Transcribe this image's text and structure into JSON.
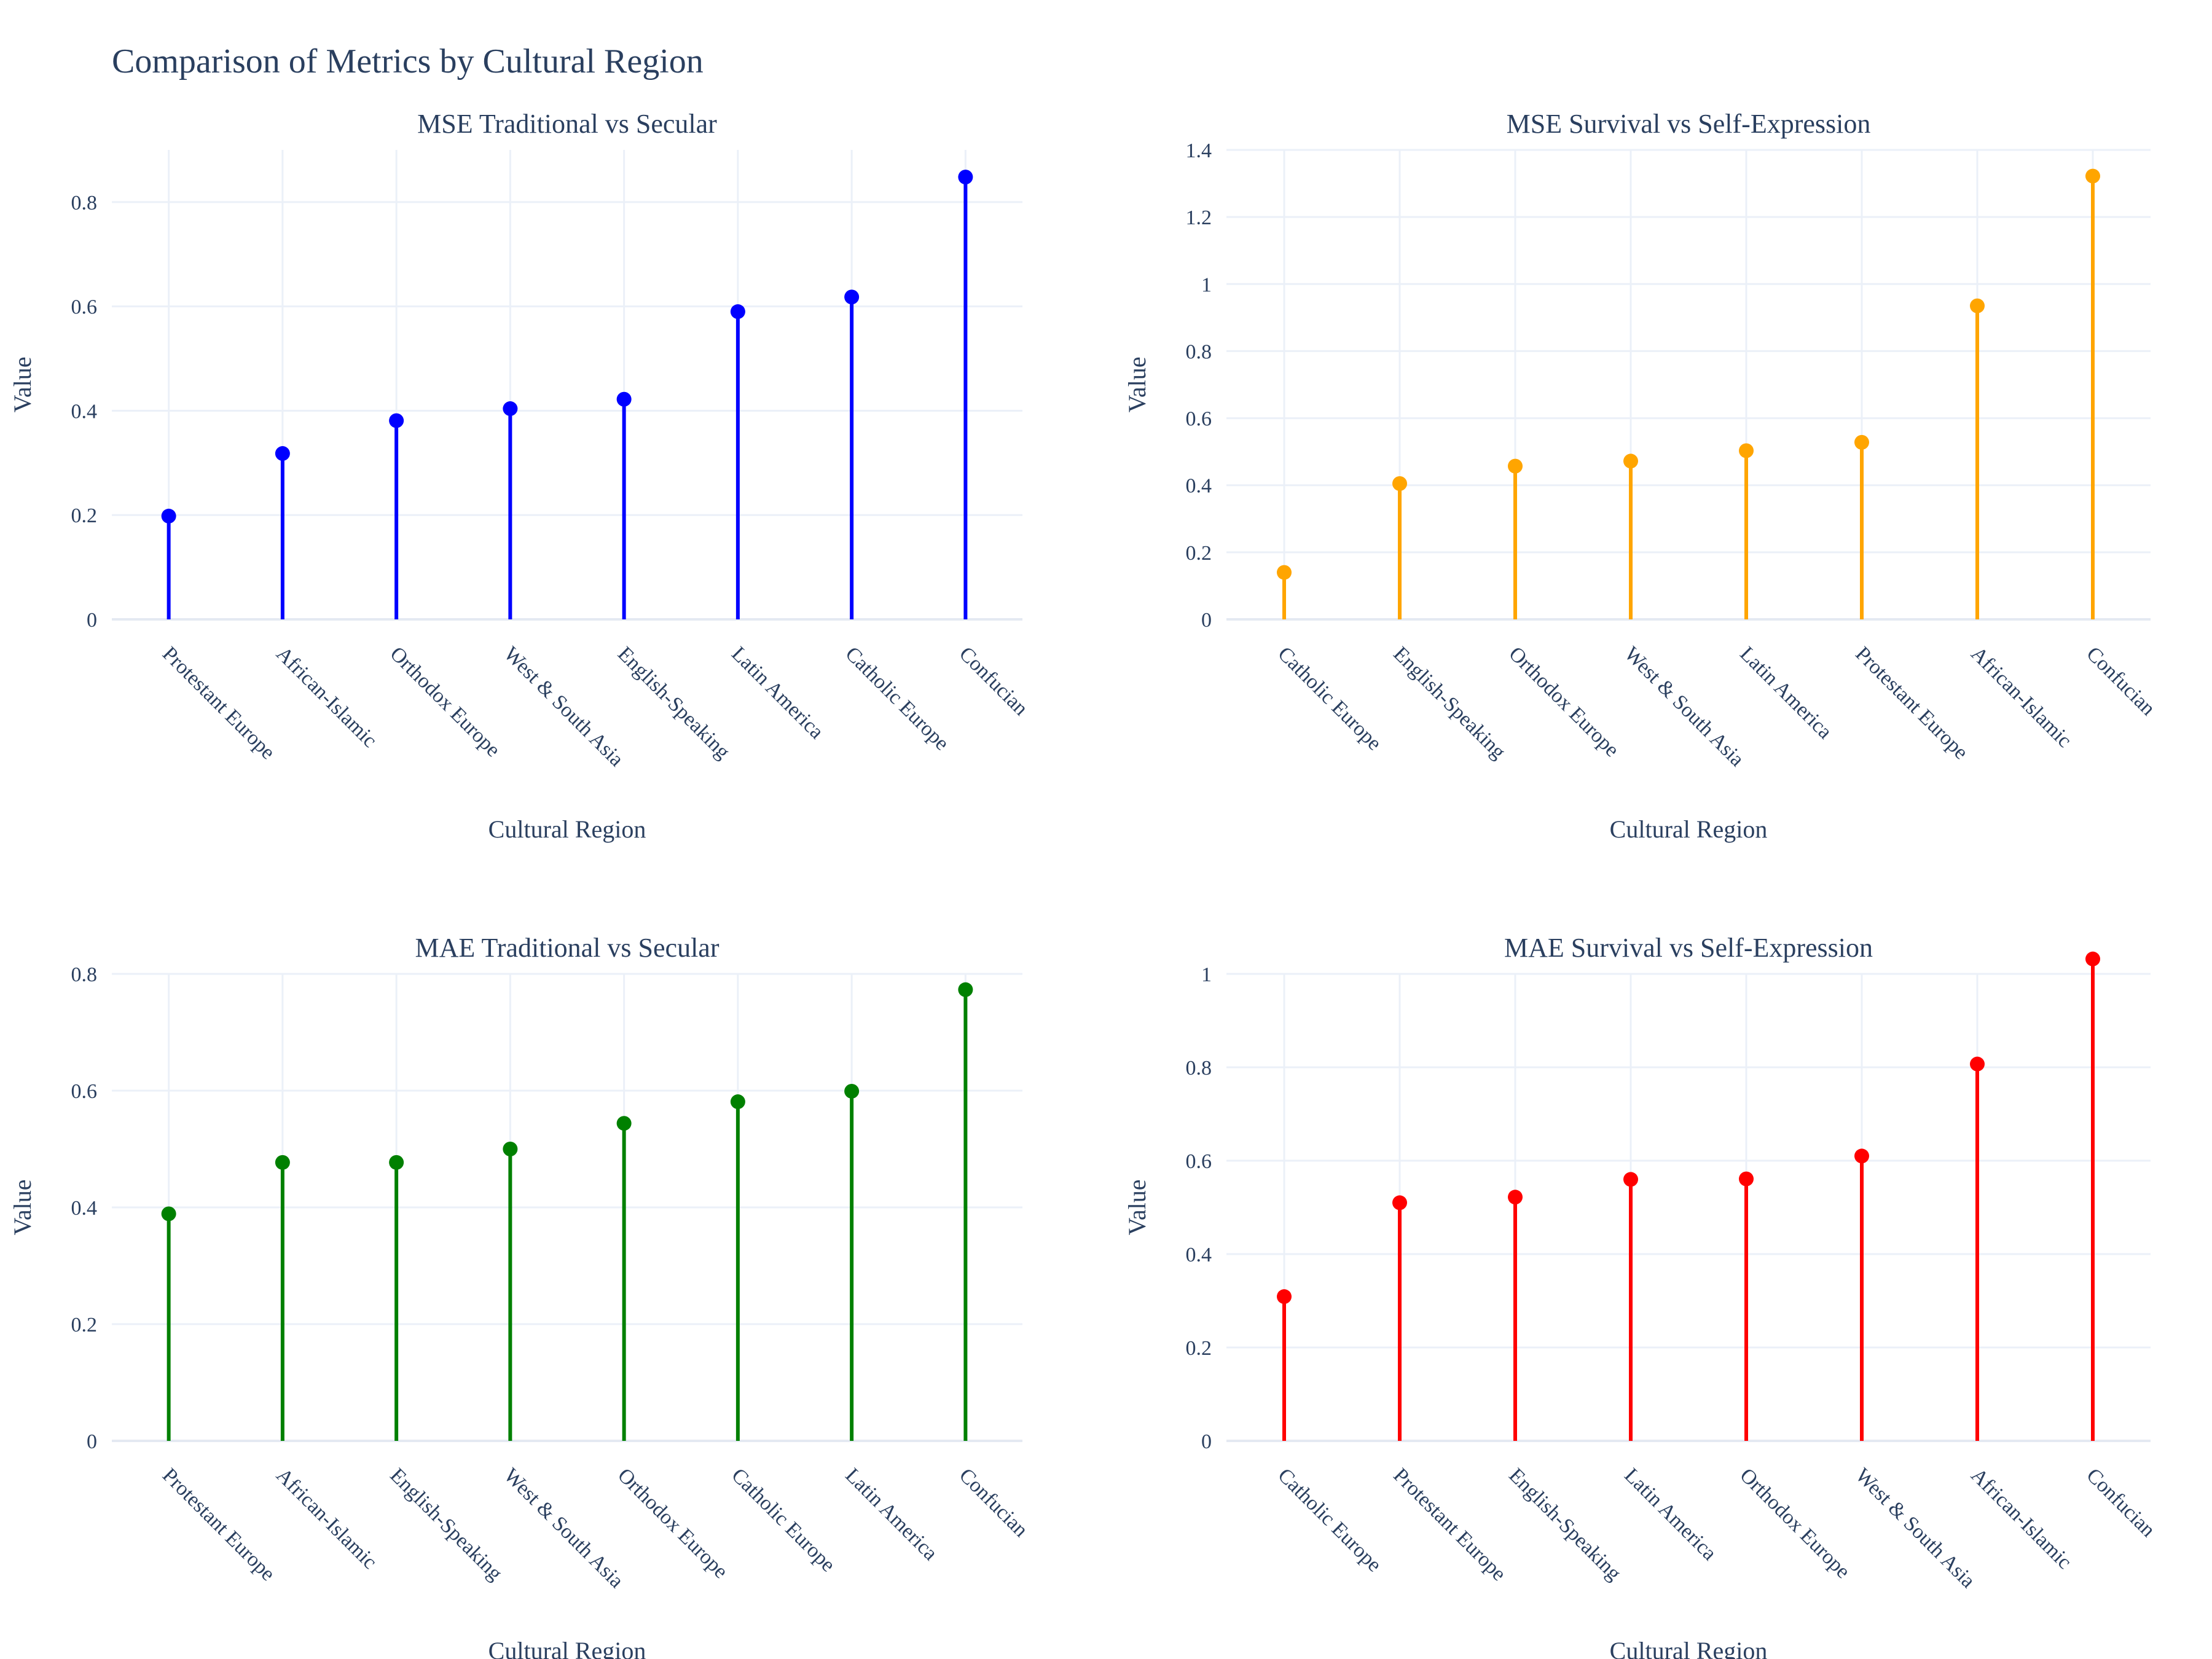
{
  "title": "Comparison of Metrics by Cultural Region",
  "chart_data": [
    {
      "type": "lollipop",
      "title": "MSE Traditional vs Secular",
      "color": "#0000ff",
      "xlabel": "Cultural Region",
      "ylabel": "Value",
      "categories": [
        "Protestant Europe",
        "African-Islamic",
        "Orthodox Europe",
        "West & South Asia",
        "English-Speaking",
        "Latin America",
        "Catholic Europe",
        "Confucian"
      ],
      "values": [
        0.198,
        0.318,
        0.381,
        0.404,
        0.422,
        0.59,
        0.618,
        0.848
      ],
      "ylim": [
        0,
        0.9
      ],
      "yticks": [
        0,
        0.2,
        0.4,
        0.6,
        0.8
      ],
      "ytick_labels": [
        "0",
        "0.2",
        "0.4",
        "0.6",
        "0.8"
      ]
    },
    {
      "type": "lollipop",
      "title": "MSE Survival vs Self-Expression",
      "color": "#ffa500",
      "xlabel": "Cultural Region",
      "ylabel": "Value",
      "categories": [
        "Catholic Europe",
        "English-Speaking",
        "Orthodox Europe",
        "West & South Asia",
        "Latin America",
        "Protestant Europe",
        "African-Islamic",
        "Confucian"
      ],
      "values": [
        0.14,
        0.405,
        0.457,
        0.472,
        0.503,
        0.528,
        0.935,
        1.322
      ],
      "ylim": [
        0,
        1.4
      ],
      "yticks": [
        0,
        0.2,
        0.4,
        0.6,
        0.8,
        1,
        1.2,
        1.4
      ],
      "ytick_labels": [
        "0",
        "0.2",
        "0.4",
        "0.6",
        "0.8",
        "1",
        "1.2",
        "1.4"
      ]
    },
    {
      "type": "lollipop",
      "title": "MAE Traditional vs Secular",
      "color": "#008000",
      "xlabel": "Cultural Region",
      "ylabel": "Value",
      "categories": [
        "Protestant Europe",
        "African-Islamic",
        "English-Speaking",
        "West & South Asia",
        "Orthodox Europe",
        "Catholic Europe",
        "Latin America",
        "Confucian"
      ],
      "values": [
        0.389,
        0.477,
        0.477,
        0.5,
        0.544,
        0.581,
        0.599,
        0.773
      ],
      "ylim": [
        0,
        0.8
      ],
      "yticks": [
        0,
        0.2,
        0.4,
        0.6,
        0.8
      ],
      "ytick_labels": [
        "0",
        "0.2",
        "0.4",
        "0.6",
        "0.8"
      ]
    },
    {
      "type": "lollipop",
      "title": "MAE Survival vs Self-Expression",
      "color": "#ff0000",
      "xlabel": "Cultural Region",
      "ylabel": "Value",
      "categories": [
        "Catholic Europe",
        "Protestant Europe",
        "English-Speaking",
        "Latin America",
        "Orthodox Europe",
        "West & South Asia",
        "African-Islamic",
        "Confucian"
      ],
      "values": [
        0.309,
        0.51,
        0.522,
        0.56,
        0.561,
        0.61,
        0.807,
        1.032
      ],
      "ylim": [
        0,
        1
      ],
      "yticks": [
        0,
        0.2,
        0.4,
        0.6,
        0.8,
        1
      ],
      "ytick_labels": [
        "0",
        "0.2",
        "0.4",
        "0.6",
        "0.8",
        "1"
      ]
    }
  ]
}
